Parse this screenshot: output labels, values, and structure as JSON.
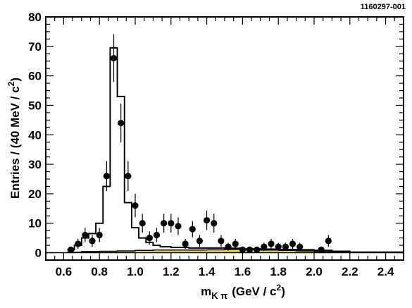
{
  "figure_id": "1160297-001",
  "chart_data": {
    "type": "scatter",
    "xlabel": "m",
    "xlabel_sub": "K π",
    "xlabel_unit": "(GeV / c",
    "xlabel_unit_sup": "2",
    "xlabel_unit_close": ")",
    "ylabel": "Entries / (40 MeV / c",
    "ylabel_sup": "2",
    "ylabel_close": ")",
    "xlim": [
      0.5,
      2.5
    ],
    "ylim": [
      -2.5,
      80
    ],
    "x_ticks": [
      0.6,
      0.8,
      1.0,
      1.2,
      1.4,
      1.6,
      1.8,
      2.0,
      2.2,
      2.4
    ],
    "x_tick_labels": [
      "0.6",
      "0.8",
      "1.0",
      "1.2",
      "1.4",
      "1.6",
      "1.8",
      "2.0",
      "2.2",
      "2.4"
    ],
    "y_ticks": [
      0,
      10,
      20,
      30,
      40,
      50,
      60,
      70,
      80
    ],
    "y_tick_labels": [
      "0",
      "10",
      "20",
      "30",
      "40",
      "50",
      "60",
      "70",
      "80"
    ],
    "grid": false,
    "data_points": {
      "x": [
        0.64,
        0.68,
        0.72,
        0.76,
        0.8,
        0.84,
        0.88,
        0.92,
        0.96,
        1.0,
        1.04,
        1.08,
        1.12,
        1.16,
        1.2,
        1.24,
        1.28,
        1.32,
        1.36,
        1.4,
        1.44,
        1.48,
        1.52,
        1.56,
        1.6,
        1.64,
        1.68,
        1.72,
        1.76,
        1.8,
        1.84,
        1.88,
        1.92,
        2.04,
        2.08
      ],
      "y": [
        1,
        3,
        6,
        4,
        6,
        26,
        66,
        44,
        26,
        16,
        10,
        5,
        6,
        10,
        10,
        9,
        3,
        8,
        4,
        11,
        10,
        4,
        2,
        3,
        1,
        1,
        1,
        2,
        3,
        2,
        2,
        3,
        2,
        1,
        4
      ],
      "yerr": [
        1.0,
        1.7,
        2.4,
        2.0,
        2.4,
        5.1,
        8.1,
        6.6,
        5.1,
        4.0,
        3.2,
        2.2,
        2.4,
        3.2,
        3.2,
        3.0,
        1.7,
        2.8,
        2.0,
        3.3,
        3.2,
        2.0,
        1.4,
        1.7,
        1.0,
        1.0,
        1.0,
        1.4,
        1.7,
        1.4,
        1.4,
        1.7,
        1.4,
        1.0,
        2.0
      ]
    },
    "fit_histogram": {
      "bin_edges": [
        0.62,
        0.66,
        0.7,
        0.74,
        0.78,
        0.82,
        0.86,
        0.9,
        0.94,
        0.98,
        1.02,
        1.06,
        1.1,
        1.14,
        1.2,
        1.3,
        1.4,
        1.5,
        1.6,
        1.7,
        1.8,
        1.9,
        2.0,
        2.1,
        2.2,
        2.5
      ],
      "values": [
        1.0,
        2.5,
        5.0,
        6.5,
        10.0,
        22.5,
        69.5,
        53.0,
        17.0,
        8.5,
        5.0,
        3.5,
        2.5,
        2.0,
        1.8,
        1.6,
        1.6,
        1.5,
        1.3,
        1.2,
        1.1,
        1.0,
        0.8,
        0.5,
        0.2
      ]
    },
    "background_histogram": {
      "color": "#f2e500",
      "bin_edges": [
        0.62,
        0.7,
        0.8,
        0.9,
        1.0,
        1.1,
        1.2,
        1.3,
        1.4,
        1.5,
        1.6,
        1.7,
        1.8,
        1.9,
        2.0,
        2.1,
        2.2,
        2.5
      ],
      "values": [
        0.2,
        0.4,
        0.5,
        0.6,
        0.8,
        0.9,
        0.9,
        0.9,
        1.0,
        1.1,
        1.0,
        0.9,
        0.8,
        0.6,
        0.4,
        0.2,
        0.1
      ]
    }
  }
}
